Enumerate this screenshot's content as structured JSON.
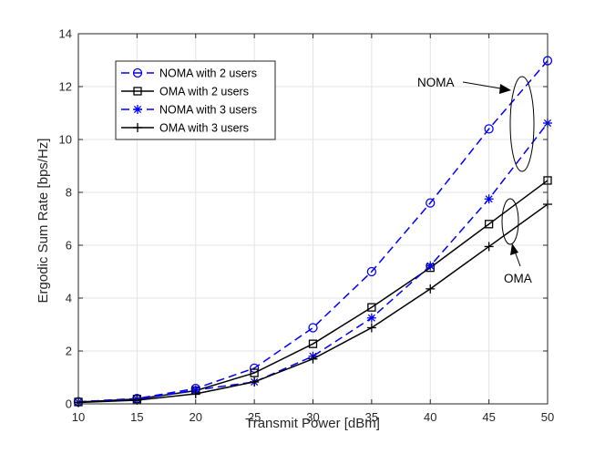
{
  "chart_data": {
    "type": "line",
    "title": "",
    "xlabel": "Transmit Power [dBm]",
    "ylabel": "Ergodic Sum Rate [bps/Hz]",
    "xlim": [
      10,
      50
    ],
    "ylim": [
      0,
      14
    ],
    "xticks": [
      10,
      15,
      20,
      25,
      30,
      35,
      40,
      45,
      50
    ],
    "yticks": [
      0,
      2,
      4,
      6,
      8,
      10,
      12,
      14
    ],
    "grid": true,
    "legend_position": "top-left",
    "x": [
      10,
      15,
      20,
      25,
      30,
      35,
      40,
      45,
      50
    ],
    "series": [
      {
        "name": "NOMA with 2 users",
        "color": "#0000ff",
        "line": "dashed",
        "marker": "circle",
        "values": [
          0.08,
          0.2,
          0.58,
          1.35,
          2.88,
          5.0,
          7.6,
          10.4,
          12.98
        ]
      },
      {
        "name": "OMA with 2 users",
        "color": "#000000",
        "line": "solid",
        "marker": "square",
        "values": [
          0.07,
          0.18,
          0.5,
          1.17,
          2.27,
          3.65,
          5.15,
          6.8,
          8.45
        ]
      },
      {
        "name": "NOMA with 3 users",
        "color": "#0000ff",
        "line": "dashed",
        "marker": "asterisk",
        "values": [
          0.06,
          0.17,
          0.52,
          0.83,
          1.8,
          3.25,
          5.22,
          7.75,
          10.62
        ]
      },
      {
        "name": "OMA with 3 users",
        "color": "#000000",
        "line": "solid",
        "marker": "plus",
        "values": [
          0.05,
          0.14,
          0.38,
          0.83,
          1.7,
          2.88,
          4.35,
          5.95,
          7.55
        ]
      }
    ],
    "annotations": [
      {
        "text": "NOMA",
        "target": "ellipse around NOMA curves at x≈47.5"
      },
      {
        "text": "OMA",
        "target": "ellipse around OMA curves at x≈47.5"
      }
    ]
  }
}
